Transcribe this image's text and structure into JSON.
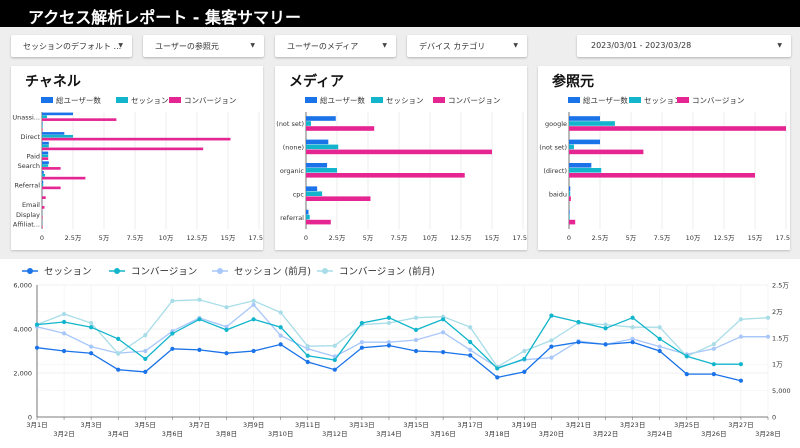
{
  "header": {
    "title": "アクセス解析レポート - 集客サマリー"
  },
  "filters": [
    {
      "label": "セッションのデフォルト ..."
    },
    {
      "label": "ユーザーの参照元"
    },
    {
      "label": "ユーザーのメディア"
    },
    {
      "label": "デバイス カテゴリ"
    }
  ],
  "date_range": {
    "label": "2023/03/01 - 2023/03/28"
  },
  "colors": {
    "users": "#1a73e8",
    "sessions": "#12b5cb",
    "conversions": "#e52592",
    "sessions_prev": "#a8c7fa",
    "conversions_prev": "#a8dde8"
  },
  "icons": {
    "dropdown": "caret-down-icon"
  },
  "chart_data": [
    {
      "type": "bar",
      "orientation": "horizontal",
      "title": "チャネル",
      "legend": [
        "総ユーザー数",
        "セッション",
        "コンバージョン"
      ],
      "categories": [
        "Unassi...",
        "",
        "Direct",
        "",
        "Paid",
        "Search",
        "",
        "Referral",
        "",
        "Email",
        "Display",
        "Affiliat..."
      ],
      "series": [
        {
          "name": "総ユーザー数",
          "values": [
            25000,
            500,
            18000,
            5500,
            5000,
            5500,
            1500,
            1000,
            200,
            100,
            100,
            100
          ]
        },
        {
          "name": "セッション",
          "values": [
            4000,
            500,
            25000,
            5500,
            5000,
            5000,
            2500,
            1000,
            100,
            100,
            100,
            100
          ]
        },
        {
          "name": "コンバージョン",
          "values": [
            60000,
            500,
            152000,
            130000,
            5000,
            15000,
            35000,
            15000,
            3000,
            2000,
            500,
            500
          ]
        }
      ],
      "xticks": [
        "0",
        "2.5万",
        "5万",
        "7.5万",
        "10万",
        "12.5万",
        "15万",
        "17.5万"
      ],
      "xlim": [
        0,
        175000
      ]
    },
    {
      "type": "bar",
      "orientation": "horizontal",
      "title": "メディア",
      "legend": [
        "総ユーザー数",
        "セッション",
        "コンバージョン"
      ],
      "categories": [
        "(not set)",
        "(none)",
        "organic",
        "cpc",
        "referral"
      ],
      "series": [
        {
          "name": "総ユーザー数",
          "values": [
            24000,
            18000,
            17000,
            9000,
            2000
          ]
        },
        {
          "name": "セッション",
          "values": [
            4000,
            26000,
            25000,
            13000,
            3000
          ]
        },
        {
          "name": "コンバージョン",
          "values": [
            55000,
            150000,
            128000,
            52000,
            20000
          ]
        }
      ],
      "xticks": [
        "0",
        "2.5万",
        "5万",
        "7.5万",
        "10万",
        "12.5万",
        "15万",
        "17.5万"
      ],
      "xlim": [
        0,
        175000
      ]
    },
    {
      "type": "bar",
      "orientation": "horizontal",
      "title": "参照元",
      "legend": [
        "総ユーザー数",
        "セッション",
        "コンバージョン"
      ],
      "categories": [
        "google",
        "(not set)",
        "(direct)",
        "baidu",
        ""
      ],
      "series": [
        {
          "name": "総ユーザー数",
          "values": [
            25000,
            25000,
            18000,
            1000,
            500
          ]
        },
        {
          "name": "セッション",
          "values": [
            37000,
            4000,
            26000,
            1000,
            500
          ]
        },
        {
          "name": "コンバージョン",
          "values": [
            175000,
            60000,
            150000,
            1500,
            5000
          ]
        }
      ],
      "xticks": [
        "0",
        "2.5万",
        "5万",
        "7.5万",
        "10万",
        "12.5万",
        "15万",
        "17.5万"
      ],
      "xlim": [
        0,
        175000
      ]
    },
    {
      "type": "line",
      "legend": [
        "セッション",
        "コンバージョン",
        "セッション (前月)",
        "コンバージョン (前月)"
      ],
      "x": [
        "3月1日",
        "3月2日",
        "3月3日",
        "3月4日",
        "3月5日",
        "3月6日",
        "3月7日",
        "3月8日",
        "3月9日",
        "3月10日",
        "3月11日",
        "3月12日",
        "3月13日",
        "3月14日",
        "3月15日",
        "3月16日",
        "3月17日",
        "3月18日",
        "3月19日",
        "3月20日",
        "3月21日",
        "3月22日",
        "3月23日",
        "3月24日",
        "3月25日",
        "3月26日",
        "3月27日",
        "3月28日"
      ],
      "y_left": {
        "ticks": [
          "0",
          "2,000",
          "4,000",
          "6,000"
        ],
        "lim": [
          0,
          6000
        ]
      },
      "y_right": {
        "ticks": [
          "0",
          "5,000",
          "1万",
          "1.5万",
          "2万",
          "2.5万"
        ],
        "lim": [
          0,
          25000
        ]
      },
      "series": [
        {
          "name": "セッション",
          "axis": "left",
          "values": [
            3150,
            3000,
            2900,
            2150,
            2050,
            3100,
            3050,
            2900,
            3000,
            3300,
            2500,
            2150,
            3150,
            3250,
            3000,
            2950,
            2800,
            1800,
            2050,
            3200,
            3400,
            3300,
            3400,
            3000,
            1950,
            1950,
            1650,
            null
          ]
        },
        {
          "name": "コンバージョン",
          "axis": "right",
          "values": [
            17500,
            18000,
            17000,
            14800,
            11000,
            15800,
            18500,
            16500,
            18500,
            17000,
            11600,
            10800,
            17800,
            18800,
            16500,
            18500,
            14200,
            9200,
            11000,
            19200,
            18000,
            16800,
            18800,
            14800,
            11500,
            10000,
            10000,
            null
          ]
        },
        {
          "name": "セッション (前月)",
          "axis": "left",
          "values": [
            4100,
            3800,
            3200,
            2900,
            3000,
            3900,
            4500,
            4100,
            5100,
            3700,
            3100,
            2750,
            3400,
            3400,
            3500,
            3850,
            3050,
            2250,
            2600,
            2700,
            3450,
            3300,
            3550,
            3200,
            2850,
            3100,
            3650,
            3650
          ]
        },
        {
          "name": "コンバージョン (前月)",
          "axis": "right",
          "values": [
            17500,
            19500,
            17800,
            12000,
            15500,
            22000,
            22200,
            20800,
            22000,
            19800,
            13400,
            13500,
            17500,
            17800,
            18800,
            19000,
            17000,
            9500,
            12500,
            14500,
            17800,
            17500,
            17000,
            17000,
            11500,
            13800,
            18500,
            18800
          ]
        }
      ]
    }
  ]
}
